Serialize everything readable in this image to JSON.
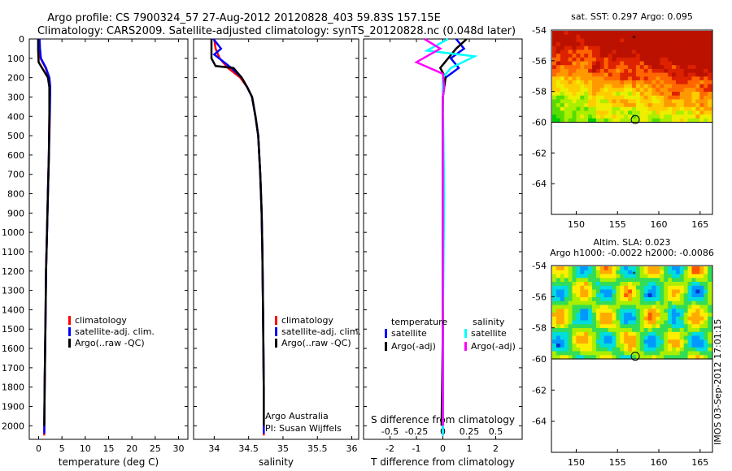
{
  "header": {
    "line1": "Argo profile: CS 7900324_57 27-Aug-2012 20120828_403 59.83S 157.15E",
    "line2": "Climatology: CARS2009. Satellite-adjusted climatology: synTS_20120828.nc (0.048d later)"
  },
  "side_stamp": "IMOS 03-Sep-2012 17:01:15",
  "colors": {
    "climatology": "#ff0000",
    "satellite": "#0000ff",
    "argo": "#000000",
    "sal_satellite": "#00ffff",
    "sal_argo": "#ff00ff"
  },
  "chart_data": [
    {
      "type": "line",
      "id": "temperature",
      "xlabel": "temperature (deg C)",
      "xlim": [
        -2,
        32
      ],
      "ylim": [
        2070,
        0
      ],
      "xticks": [
        "0",
        "5",
        "10",
        "15",
        "20",
        "25",
        "30"
      ],
      "yticks": [
        "0",
        "100",
        "200",
        "300",
        "400",
        "500",
        "600",
        "700",
        "800",
        "900",
        "1000",
        "1100",
        "1200",
        "1300",
        "1400",
        "1500",
        "1600",
        "1700",
        "1800",
        "1900",
        "2000"
      ],
      "legend": [
        "climatology",
        "satellite-adj. clim.",
        "Argo(..raw -QC)"
      ],
      "series": [
        {
          "name": "climatology",
          "color": "#ff0000",
          "x": [
            0.1,
            0.2,
            0.4,
            1.5,
            2.2,
            2.4,
            2.3,
            2.2,
            2.0,
            1.8,
            1.6,
            1.5,
            1.4,
            1.3,
            1.2
          ],
          "y": [
            0,
            50,
            100,
            150,
            200,
            250,
            400,
            600,
            800,
            1000,
            1200,
            1400,
            1600,
            1800,
            2050
          ]
        },
        {
          "name": "satellite-adj. clim.",
          "color": "#0000ff",
          "x": [
            0.2,
            0.3,
            0.5,
            1.6,
            2.3,
            2.5,
            2.4,
            2.2,
            2.0,
            1.8,
            1.6,
            1.5,
            1.4,
            1.3,
            1.2
          ],
          "y": [
            0,
            50,
            100,
            150,
            200,
            250,
            400,
            600,
            800,
            1000,
            1200,
            1400,
            1600,
            1800,
            2040
          ]
        },
        {
          "name": "Argo(..raw -QC)",
          "color": "#000000",
          "x": [
            -0.1,
            -0.1,
            0.0,
            1.0,
            2.0,
            2.3,
            2.3,
            2.2,
            2.0,
            1.8,
            1.6,
            1.5,
            1.4,
            1.3,
            1.2
          ],
          "y": [
            0,
            60,
            120,
            160,
            200,
            250,
            400,
            600,
            800,
            1000,
            1200,
            1400,
            1600,
            1800,
            2000
          ]
        }
      ]
    },
    {
      "type": "line",
      "id": "salinity",
      "xlabel": "salinity",
      "xlim": [
        33.7,
        36.1
      ],
      "ylim": [
        2070,
        0
      ],
      "xticks": [
        "34",
        "34.5",
        "35",
        "35.5",
        "36"
      ],
      "legend": [
        "climatology",
        "satellite-adj. clim.",
        "Argo(..raw -QC)"
      ],
      "annotation": [
        "Argo Australia",
        "PI: Susan Wijffels"
      ],
      "series": [
        {
          "name": "climatology",
          "color": "#ff0000",
          "x": [
            34.0,
            34.02,
            34.08,
            34.2,
            34.38,
            34.48,
            34.55,
            34.6,
            34.64,
            34.67,
            34.69,
            34.7,
            34.71,
            34.72,
            34.72
          ],
          "y": [
            0,
            50,
            100,
            150,
            200,
            250,
            300,
            400,
            500,
            700,
            900,
            1100,
            1400,
            1800,
            2050
          ]
        },
        {
          "name": "satellite-adj. clim.",
          "color": "#0000ff",
          "x": [
            33.99,
            34.1,
            34.0,
            34.25,
            34.4,
            34.48,
            34.55,
            34.6,
            34.64,
            34.67,
            34.69,
            34.7,
            34.71,
            34.72,
            34.72
          ],
          "y": [
            0,
            50,
            80,
            150,
            200,
            250,
            300,
            400,
            500,
            700,
            900,
            1100,
            1400,
            1800,
            2040
          ]
        },
        {
          "name": "Argo(..raw -QC)",
          "color": "#000000",
          "x": [
            33.96,
            33.96,
            34.02,
            34.28,
            34.4,
            34.48,
            34.55,
            34.6,
            34.64,
            34.67,
            34.69,
            34.7,
            34.71,
            34.72,
            34.72
          ],
          "y": [
            0,
            100,
            140,
            150,
            200,
            250,
            300,
            400,
            500,
            700,
            900,
            1100,
            1400,
            1800,
            2000
          ]
        }
      ]
    },
    {
      "type": "line",
      "id": "difference",
      "xlabel": "T difference from climatology",
      "top_label": "S difference from climatology",
      "xlim": [
        -3,
        3
      ],
      "ylim": [
        2070,
        0
      ],
      "xticks": [
        "-2",
        "-1",
        "0",
        "1",
        "2"
      ],
      "top_ticks": [
        "-0.5",
        "-0.25",
        "0",
        "0.25",
        "0.5"
      ],
      "legend_titles": [
        "temperature",
        "salinity"
      ],
      "legend": [
        "satellite",
        "Argo(-adj)",
        "satellite",
        "Argo(-adj)"
      ],
      "series": [
        {
          "name": "satellite",
          "color": "#0000ff",
          "x": [
            0.5,
            0.8,
            0.3,
            0.6,
            0.1,
            0.0,
            0.0,
            0.0,
            0.0
          ],
          "y": [
            0,
            50,
            100,
            150,
            200,
            300,
            800,
            1500,
            2050
          ]
        },
        {
          "name": "Argo(-adj)",
          "color": "#000000",
          "x": [
            0.9,
            0.5,
            0.2,
            -0.1,
            0.1,
            0.0,
            0.0,
            0.0,
            -0.05
          ],
          "y": [
            0,
            50,
            100,
            150,
            200,
            300,
            800,
            1500,
            2000
          ]
        },
        {
          "name": "satellite",
          "color": "#00ffff",
          "x": [
            0.2,
            -0.6,
            1.2,
            0.3,
            0.0,
            0.0,
            0.05,
            0.0,
            0.0
          ],
          "y": [
            0,
            60,
            90,
            150,
            200,
            300,
            800,
            1500,
            2050
          ]
        },
        {
          "name": "Argo(-adj)",
          "color": "#ff00ff",
          "x": [
            -0.7,
            -0.1,
            -1.0,
            0.0,
            0.05,
            0.0,
            0.0,
            0.0,
            0.0
          ],
          "y": [
            0,
            50,
            120,
            180,
            250,
            300,
            800,
            1500,
            2000
          ]
        }
      ]
    },
    {
      "type": "heatmap",
      "id": "sst_map",
      "title": "sat. SST: 0.297 Argo: 0.095",
      "xlim": [
        147,
        166.5
      ],
      "ylim": [
        -66,
        -54
      ],
      "xticks": [
        "150",
        "155",
        "160",
        "165"
      ],
      "yticks": [
        "-54",
        "-56",
        "-58",
        "-60",
        "-62",
        "-64"
      ],
      "float_position": [
        157.15,
        -59.83
      ]
    },
    {
      "type": "heatmap",
      "id": "sla_map",
      "title": "Altim. SLA: 0.023",
      "subtitle": "Argo h1000: -0.0022 h2000: -0.0086",
      "xlim": [
        147,
        166.5
      ],
      "ylim": [
        -66,
        -54
      ],
      "xticks": [
        "150",
        "155",
        "160",
        "165"
      ],
      "yticks": [
        "-54",
        "-56",
        "-58",
        "-60",
        "-62",
        "-64"
      ],
      "float_position": [
        157.15,
        -59.83
      ]
    }
  ]
}
